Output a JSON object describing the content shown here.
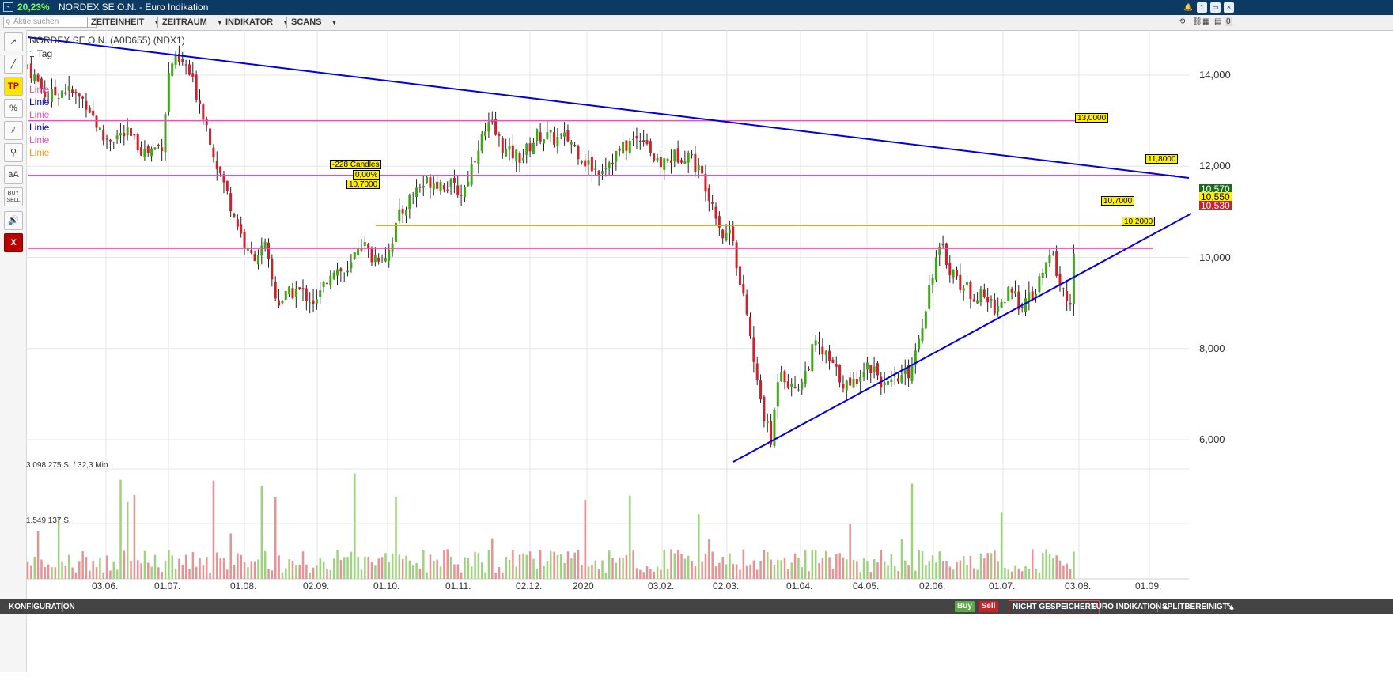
{
  "window": {
    "change_pct": "20,23%",
    "title": "NORDEX SE O.N. - Euro Indikation",
    "controls": [
      "1",
      "▭",
      "×"
    ]
  },
  "menubar": {
    "search_placeholder": "Aktie suchen",
    "items": [
      "ZEITEINHEIT",
      "ZEITRAUM",
      "INDIKATOR",
      "SCANS"
    ],
    "right_badge": "0"
  },
  "toolbar": {
    "tools": [
      "cursor",
      "line",
      "TP",
      "%",
      "parallel",
      "zoom",
      "aA",
      "BUY\nSELL",
      "sound",
      "X"
    ]
  },
  "chart": {
    "instrument": "NORDEX SE O.N. (A0D655) (NDX1)",
    "timeframe": "1 Tag",
    "legend": [
      {
        "label": "Linie",
        "color": "#ee4fb4"
      },
      {
        "label": "Linie",
        "color": "#0000e0"
      },
      {
        "label": "Linie",
        "color": "#ee4fb4"
      },
      {
        "label": "Linie",
        "color": "#0000e0"
      },
      {
        "label": "Linie",
        "color": "#ee4fb4"
      },
      {
        "label": "Linie",
        "color": "#f5a200"
      }
    ],
    "y_ticks": [
      "14,000",
      "12,000",
      "10,000",
      "8,000",
      "6,000"
    ],
    "x_ticks": [
      "03.06.",
      "01.07.",
      "01.08.",
      "02.09.",
      "01.10.",
      "01.11.",
      "02.12.",
      "2020",
      "03.02.",
      "02.03.",
      "01.04.",
      "04.05.",
      "02.06.",
      "01.07.",
      "03.08.",
      "01.09."
    ],
    "horizontal_lines": [
      {
        "price": 13.0,
        "label": "13,0000",
        "color": "#ee4fb4"
      },
      {
        "price": 11.8,
        "label": "11,8000",
        "color": "#ee4fb4"
      },
      {
        "price": 10.7,
        "label": "10,7000",
        "color": "#f5a200"
      },
      {
        "price": 10.2,
        "label": "10,2000",
        "color": "#ee4fb4"
      }
    ],
    "annotations": {
      "candles": "-228 Candles",
      "pct": "0,00%",
      "price": "10,7000"
    },
    "current": {
      "high": "10,570",
      "last": "10,550",
      "low": "10,530"
    },
    "volume_labels": [
      "3.098.275 S. / 32,3 Mio.",
      "1.549.137 S."
    ],
    "colors": {
      "up": "#3fa818",
      "down": "#d0202a",
      "vol_up": "#9fd27f",
      "vol_down": "#e59393",
      "trend": "#0000e0"
    }
  },
  "statusbar": {
    "config": "KONFIGURATION",
    "buy": "Buy",
    "sell": "Sell",
    "not_saved": "NICHT GESPEICHERT",
    "quote": "EURO INDIKATION ▴",
    "split": "SPLITBEREINIGT ▴"
  }
}
